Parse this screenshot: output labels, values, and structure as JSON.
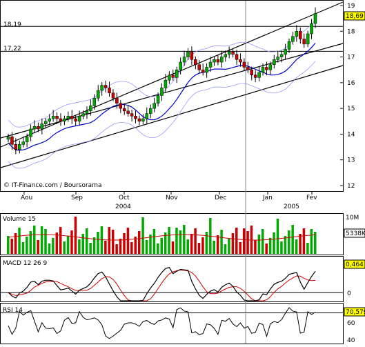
{
  "chart_data": [
    {
      "panel": "price",
      "type": "candlestick",
      "source": "© IT-Finance.com / Boursorama",
      "y_ticks": [
        12,
        13,
        14,
        15,
        16,
        17,
        18,
        19
      ],
      "ylim": [
        12,
        19
      ],
      "last_price": "18,69",
      "horizontal_lines": [
        {
          "label": "18,19",
          "value": 18.19
        },
        {
          "label": "17,22",
          "value": 17.22
        }
      ],
      "x_labels": [
        "Aou",
        "Sep",
        "Oct",
        "Nov",
        "Dec",
        "Jan",
        "Fev"
      ],
      "year_labels": [
        "2004",
        "2005"
      ],
      "close_series": [
        13.9,
        13.6,
        13.4,
        13.6,
        13.7,
        13.9,
        14.2,
        14.3,
        14.2,
        14.4,
        14.5,
        14.6,
        14.7,
        14.6,
        14.5,
        14.6,
        14.7,
        14.6,
        14.5,
        14.7,
        14.8,
        14.9,
        15.1,
        15.4,
        15.7,
        15.9,
        15.8,
        15.6,
        15.4,
        15.2,
        15.0,
        14.9,
        14.8,
        14.7,
        14.6,
        14.5,
        14.6,
        14.8,
        15.0,
        15.2,
        15.5,
        15.8,
        16.1,
        16.3,
        16.2,
        16.5,
        16.8,
        17.0,
        17.2,
        16.9,
        16.7,
        16.5,
        16.4,
        16.6,
        16.8,
        16.9,
        16.8,
        17.0,
        17.1,
        17.2,
        17.1,
        16.9,
        16.8,
        16.6,
        16.5,
        16.3,
        16.2,
        16.4,
        16.6,
        16.5,
        16.7,
        16.9,
        17.0,
        17.1,
        17.3,
        17.6,
        17.8,
        18.0,
        17.7,
        17.5,
        17.9,
        18.3,
        18.69
      ],
      "volume": {
        "label": "Volume 15",
        "y_ticks": [
          "10M"
        ],
        "last_value": "5338K"
      },
      "macd": {
        "label": "MACD 12 26 9",
        "y_ticks": [
          0
        ],
        "last_value": "0,464"
      },
      "rsi": {
        "label": "RSI 14",
        "y_ticks": [
          40,
          60
        ],
        "last_value": "70,579"
      }
    }
  ],
  "colors": {
    "up": "#00aa00",
    "down": "#cc0000",
    "ma": "#0000cc",
    "band": "#9999ff",
    "signal": "#cc0000",
    "line": "#000000",
    "last_tag": "#ffff00",
    "grid": "#000000"
  }
}
